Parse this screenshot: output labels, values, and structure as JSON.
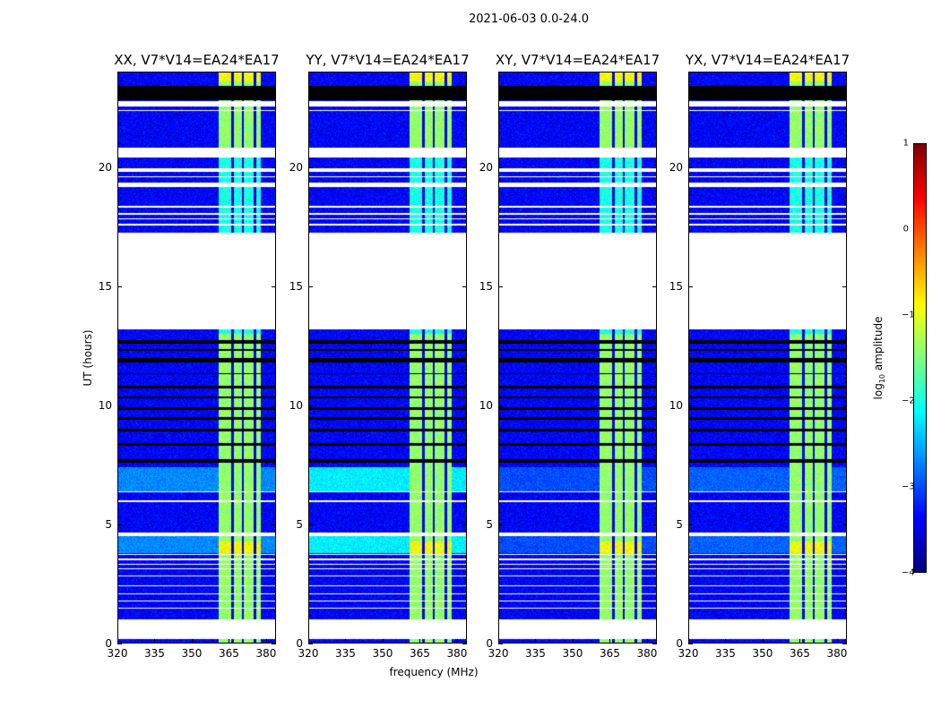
{
  "chart_data": {
    "type": "heatmap",
    "title": "2021-06-03 0.0-24.0",
    "xlabel": "frequency (MHz)",
    "ylabel": "UT (hours)",
    "xlim": [
      320,
      384
    ],
    "ylim": [
      0,
      24
    ],
    "xticks": [
      "320",
      "335",
      "350",
      "365",
      "380"
    ],
    "xtick_values": [
      320,
      335,
      350,
      365,
      380
    ],
    "yticks": [
      "0",
      "5",
      "10",
      "15",
      "20"
    ],
    "ytick_values": [
      0,
      5,
      10,
      15,
      20
    ],
    "colormap": "jet",
    "colorbar": {
      "label": "log10 amplitude",
      "label_main": "log",
      "label_sub": "10",
      "label_tail": " amplitude",
      "range": [
        -4,
        1
      ],
      "ticks": [
        "1",
        "0",
        "−1",
        "−2",
        "−3",
        "−4"
      ],
      "tick_values": [
        1,
        0,
        -1,
        -2,
        -3,
        -4
      ]
    },
    "background_level": -3.4,
    "bright_band_mhz": [
      361,
      378
    ],
    "bright_band_level": -1.4,
    "band_dividers_mhz": [
      366.5,
      370.5,
      375.5
    ],
    "empty_hours": [
      [
        0.2,
        1.0
      ],
      [
        1.45,
        1.5
      ],
      [
        1.75,
        1.8
      ],
      [
        2.05,
        2.1
      ],
      [
        2.4,
        2.45
      ],
      [
        2.8,
        2.85
      ],
      [
        3.1,
        3.15
      ],
      [
        3.3,
        3.35
      ],
      [
        3.5,
        3.55
      ],
      [
        3.7,
        3.75
      ],
      [
        4.5,
        4.65
      ],
      [
        5.95,
        6.0
      ],
      [
        6.35,
        6.4
      ],
      [
        13.2,
        17.25
      ],
      [
        17.55,
        17.6
      ],
      [
        17.8,
        17.85
      ],
      [
        18.0,
        18.05
      ],
      [
        18.3,
        18.35
      ],
      [
        19.15,
        19.35
      ],
      [
        19.55,
        19.6
      ],
      [
        19.8,
        19.95
      ],
      [
        20.4,
        20.8
      ],
      [
        22.35,
        22.4
      ],
      [
        22.55,
        22.75
      ]
    ],
    "flagged_hours": [
      [
        7.6,
        7.75
      ],
      [
        8.3,
        8.4
      ],
      [
        8.9,
        9.0
      ],
      [
        9.4,
        9.5
      ],
      [
        9.8,
        9.9
      ],
      [
        10.3,
        10.35
      ],
      [
        10.7,
        10.8
      ],
      [
        11.3,
        11.35
      ],
      [
        11.8,
        12.0
      ],
      [
        12.3,
        12.35
      ],
      [
        12.6,
        12.75
      ],
      [
        22.8,
        23.4
      ]
    ],
    "panels": [
      {
        "title": "XX, V7*V14=EA24*EA17",
        "cyan_band": -2.7
      },
      {
        "title": "YY, V7*V14=EA24*EA17",
        "cyan_band": -2.2
      },
      {
        "title": "XY, V7*V14=EA24*EA17",
        "cyan_band": -3.0
      },
      {
        "title": "YX, V7*V14=EA24*EA17",
        "cyan_band": -2.9
      }
    ]
  }
}
